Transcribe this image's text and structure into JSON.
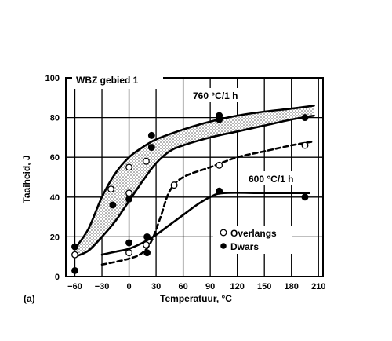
{
  "chart_data": {
    "type": "scatter",
    "xlabel": "Temperatuur, °C",
    "ylabel": "Taaiheid, J",
    "xlim": [
      -70,
      215
    ],
    "ylim": [
      0,
      100
    ],
    "xticks": [
      -60,
      -30,
      0,
      30,
      60,
      90,
      120,
      150,
      180,
      210
    ],
    "xtick_labels": [
      "−60",
      "−30",
      "0",
      "30",
      "60",
      "90",
      "120",
      "150",
      "180",
      "210"
    ],
    "yticks": [
      0,
      20,
      40,
      60,
      80,
      100
    ],
    "ytick_labels": [
      "0",
      "20",
      "40",
      "60",
      "80",
      "100"
    ],
    "grid": true,
    "panel_label": "(a)",
    "inset_label": "WBZ gebied 1",
    "annotations": [
      {
        "text": "760 °C/1 h",
        "x": 68,
        "y": 89
      },
      {
        "text": "600 °C/1 h",
        "x": 150,
        "y": 47
      }
    ],
    "legend": {
      "position": "bottom-right",
      "entries": [
        {
          "label": "Overlangs",
          "marker": "open-circle"
        },
        {
          "label": "Dwars",
          "marker": "filled-circle"
        }
      ]
    },
    "series": [
      {
        "name": "Overlangs",
        "marker": "open-circle",
        "points": [
          [
            -60,
            11
          ],
          [
            -20,
            44
          ],
          [
            0,
            55
          ],
          [
            0,
            42
          ],
          [
            19,
            58
          ],
          [
            19,
            16
          ],
          [
            0,
            12
          ],
          [
            50,
            46
          ],
          [
            100,
            56
          ],
          [
            195,
            66
          ]
        ]
      },
      {
        "name": "Dwars",
        "marker": "filled-circle",
        "points": [
          [
            -60,
            15
          ],
          [
            -60,
            3
          ],
          [
            -18,
            36
          ],
          [
            0,
            39
          ],
          [
            0,
            17
          ],
          [
            25,
            71
          ],
          [
            25,
            65
          ],
          [
            20,
            20
          ],
          [
            20,
            12
          ],
          [
            100,
            81
          ],
          [
            100,
            79
          ],
          [
            100,
            43
          ],
          [
            195,
            80
          ],
          [
            195,
            40
          ]
        ]
      }
    ],
    "curves": [
      {
        "id": "band-upper",
        "style": "solid",
        "points": [
          [
            -60,
            14
          ],
          [
            -45,
            24
          ],
          [
            -30,
            40
          ],
          [
            -15,
            52
          ],
          [
            0,
            60
          ],
          [
            15,
            65
          ],
          [
            30,
            69
          ],
          [
            60,
            74
          ],
          [
            90,
            78
          ],
          [
            120,
            81
          ],
          [
            150,
            83
          ],
          [
            180,
            84.5
          ],
          [
            205,
            86
          ]
        ]
      },
      {
        "id": "band-lower",
        "style": "solid",
        "points": [
          [
            -60,
            10
          ],
          [
            -45,
            13
          ],
          [
            -30,
            20
          ],
          [
            -15,
            28
          ],
          [
            0,
            38
          ],
          [
            15,
            48
          ],
          [
            30,
            57
          ],
          [
            45,
            63
          ],
          [
            60,
            66
          ],
          [
            90,
            70
          ],
          [
            120,
            73
          ],
          [
            150,
            76
          ],
          [
            180,
            79
          ],
          [
            205,
            81
          ]
        ]
      },
      {
        "id": "600-dashed",
        "style": "dashed",
        "points": [
          [
            -30,
            6
          ],
          [
            0,
            9
          ],
          [
            15,
            12
          ],
          [
            25,
            18
          ],
          [
            35,
            30
          ],
          [
            45,
            43
          ],
          [
            60,
            50
          ],
          [
            90,
            55
          ],
          [
            120,
            60
          ],
          [
            150,
            63
          ],
          [
            180,
            66
          ],
          [
            205,
            68
          ]
        ]
      },
      {
        "id": "600-solid",
        "style": "solid",
        "points": [
          [
            -30,
            11
          ],
          [
            -15,
            12.5
          ],
          [
            0,
            14
          ],
          [
            15,
            17
          ],
          [
            30,
            21
          ],
          [
            45,
            26
          ],
          [
            60,
            31
          ],
          [
            75,
            36
          ],
          [
            90,
            40
          ],
          [
            105,
            42
          ],
          [
            150,
            42
          ],
          [
            200,
            42
          ]
        ]
      }
    ]
  }
}
